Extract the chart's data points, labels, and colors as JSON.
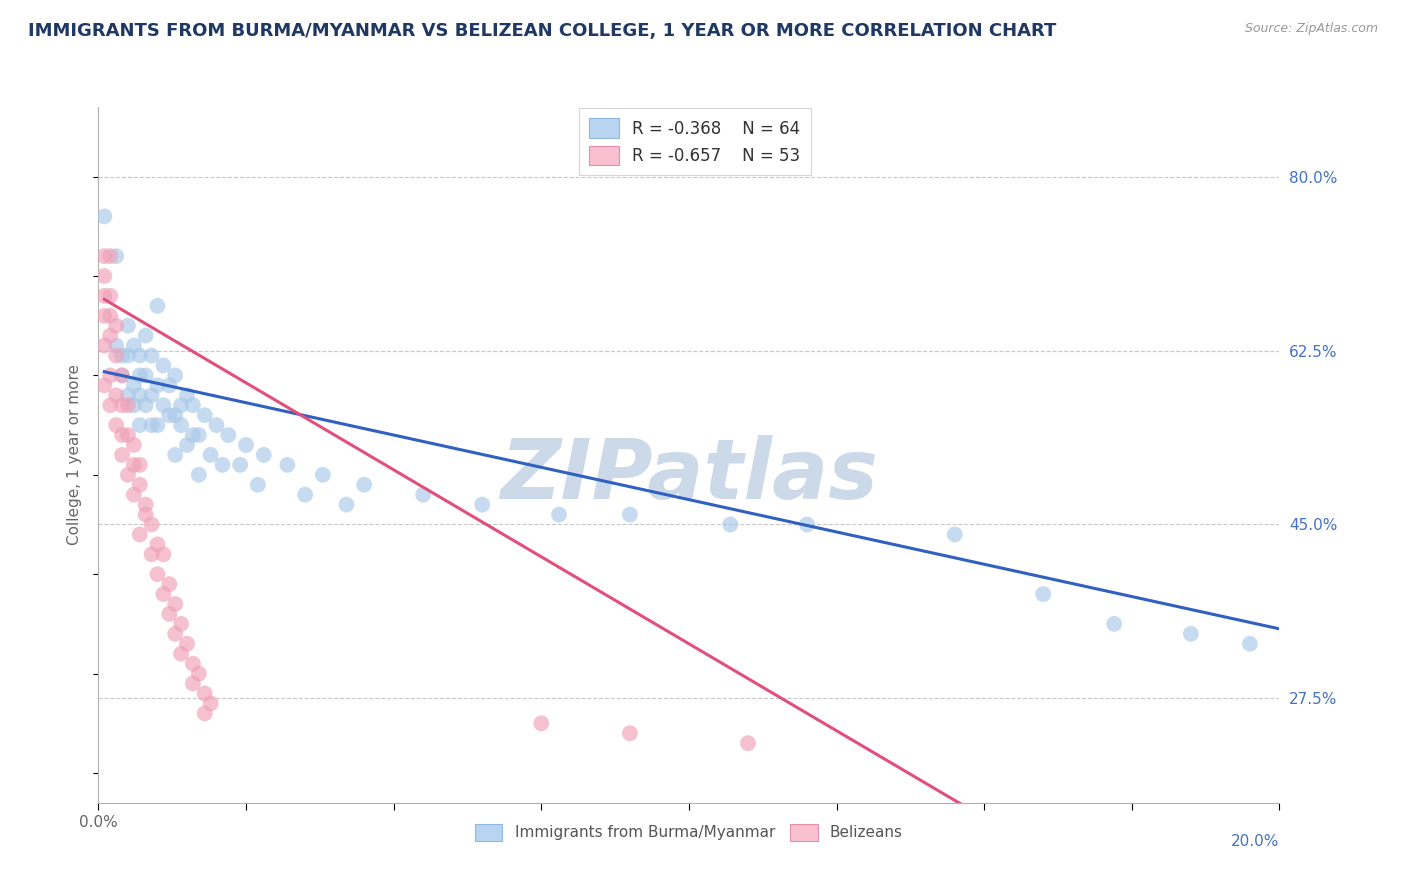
{
  "title": "IMMIGRANTS FROM BURMA/MYANMAR VS BELIZEAN COLLEGE, 1 YEAR OR MORE CORRELATION CHART",
  "source": "Source: ZipAtlas.com",
  "ylabel": "College, 1 year or more",
  "xlim": [
    0.0,
    0.2
  ],
  "ylim": [
    0.17,
    0.87
  ],
  "yticks_right": [
    0.8,
    0.625,
    0.45,
    0.275
  ],
  "ytick_right_labels": [
    "80.0%",
    "62.5%",
    "45.0%",
    "27.5%"
  ],
  "grid_color": "#c8c8c8",
  "background_color": "#ffffff",
  "watermark": "ZIPatlas",
  "watermark_color": "#ccd9e8",
  "series": [
    {
      "name": "Immigrants from Burma/Myanmar",
      "R": -0.368,
      "N": 64,
      "color": "#a8c8e8",
      "line_color": "#3060c0",
      "points": [
        [
          0.001,
          0.76
        ],
        [
          0.003,
          0.72
        ],
        [
          0.01,
          0.67
        ],
        [
          0.005,
          0.65
        ],
        [
          0.008,
          0.64
        ],
        [
          0.003,
          0.63
        ],
        [
          0.006,
          0.63
        ],
        [
          0.004,
          0.62
        ],
        [
          0.009,
          0.62
        ],
        [
          0.007,
          0.62
        ],
        [
          0.005,
          0.62
        ],
        [
          0.011,
          0.61
        ],
        [
          0.007,
          0.6
        ],
        [
          0.004,
          0.6
        ],
        [
          0.008,
          0.6
        ],
        [
          0.013,
          0.6
        ],
        [
          0.006,
          0.59
        ],
        [
          0.01,
          0.59
        ],
        [
          0.012,
          0.59
        ],
        [
          0.009,
          0.58
        ],
        [
          0.005,
          0.58
        ],
        [
          0.007,
          0.58
        ],
        [
          0.015,
          0.58
        ],
        [
          0.014,
          0.57
        ],
        [
          0.008,
          0.57
        ],
        [
          0.011,
          0.57
        ],
        [
          0.016,
          0.57
        ],
        [
          0.006,
          0.57
        ],
        [
          0.013,
          0.56
        ],
        [
          0.012,
          0.56
        ],
        [
          0.018,
          0.56
        ],
        [
          0.009,
          0.55
        ],
        [
          0.007,
          0.55
        ],
        [
          0.01,
          0.55
        ],
        [
          0.014,
          0.55
        ],
        [
          0.02,
          0.55
        ],
        [
          0.017,
          0.54
        ],
        [
          0.016,
          0.54
        ],
        [
          0.022,
          0.54
        ],
        [
          0.015,
          0.53
        ],
        [
          0.025,
          0.53
        ],
        [
          0.019,
          0.52
        ],
        [
          0.013,
          0.52
        ],
        [
          0.028,
          0.52
        ],
        [
          0.021,
          0.51
        ],
        [
          0.024,
          0.51
        ],
        [
          0.032,
          0.51
        ],
        [
          0.017,
          0.5
        ],
        [
          0.038,
          0.5
        ],
        [
          0.027,
          0.49
        ],
        [
          0.045,
          0.49
        ],
        [
          0.035,
          0.48
        ],
        [
          0.055,
          0.48
        ],
        [
          0.042,
          0.47
        ],
        [
          0.065,
          0.47
        ],
        [
          0.078,
          0.46
        ],
        [
          0.09,
          0.46
        ],
        [
          0.107,
          0.45
        ],
        [
          0.12,
          0.45
        ],
        [
          0.145,
          0.44
        ],
        [
          0.16,
          0.38
        ],
        [
          0.172,
          0.35
        ],
        [
          0.185,
          0.34
        ],
        [
          0.195,
          0.33
        ]
      ]
    },
    {
      "name": "Belizeans",
      "R": -0.657,
      "N": 53,
      "color": "#f0a0b8",
      "line_color": "#e0507a",
      "points": [
        [
          0.001,
          0.72
        ],
        [
          0.002,
          0.72
        ],
        [
          0.001,
          0.7
        ],
        [
          0.002,
          0.68
        ],
        [
          0.001,
          0.68
        ],
        [
          0.002,
          0.66
        ],
        [
          0.001,
          0.66
        ],
        [
          0.003,
          0.65
        ],
        [
          0.002,
          0.64
        ],
        [
          0.001,
          0.63
        ],
        [
          0.003,
          0.62
        ],
        [
          0.002,
          0.6
        ],
        [
          0.004,
          0.6
        ],
        [
          0.001,
          0.59
        ],
        [
          0.003,
          0.58
        ],
        [
          0.004,
          0.57
        ],
        [
          0.002,
          0.57
        ],
        [
          0.005,
          0.57
        ],
        [
          0.003,
          0.55
        ],
        [
          0.005,
          0.54
        ],
        [
          0.004,
          0.54
        ],
        [
          0.006,
          0.53
        ],
        [
          0.004,
          0.52
        ],
        [
          0.006,
          0.51
        ],
        [
          0.007,
          0.51
        ],
        [
          0.005,
          0.5
        ],
        [
          0.007,
          0.49
        ],
        [
          0.006,
          0.48
        ],
        [
          0.008,
          0.47
        ],
        [
          0.008,
          0.46
        ],
        [
          0.009,
          0.45
        ],
        [
          0.007,
          0.44
        ],
        [
          0.01,
          0.43
        ],
        [
          0.009,
          0.42
        ],
        [
          0.011,
          0.42
        ],
        [
          0.01,
          0.4
        ],
        [
          0.012,
          0.39
        ],
        [
          0.011,
          0.38
        ],
        [
          0.013,
          0.37
        ],
        [
          0.012,
          0.36
        ],
        [
          0.014,
          0.35
        ],
        [
          0.013,
          0.34
        ],
        [
          0.015,
          0.33
        ],
        [
          0.014,
          0.32
        ],
        [
          0.016,
          0.31
        ],
        [
          0.017,
          0.3
        ],
        [
          0.016,
          0.29
        ],
        [
          0.018,
          0.28
        ],
        [
          0.019,
          0.27
        ],
        [
          0.018,
          0.26
        ],
        [
          0.075,
          0.25
        ],
        [
          0.09,
          0.24
        ],
        [
          0.11,
          0.23
        ]
      ]
    }
  ],
  "title_color": "#1f3864",
  "axis_label_color": "#666666",
  "tick_color": "#666666",
  "right_tick_color": "#4472c4",
  "legend_R_color": "#e05080",
  "xtick_left_label": "0.0%",
  "xtick_right_label": "20.0%"
}
